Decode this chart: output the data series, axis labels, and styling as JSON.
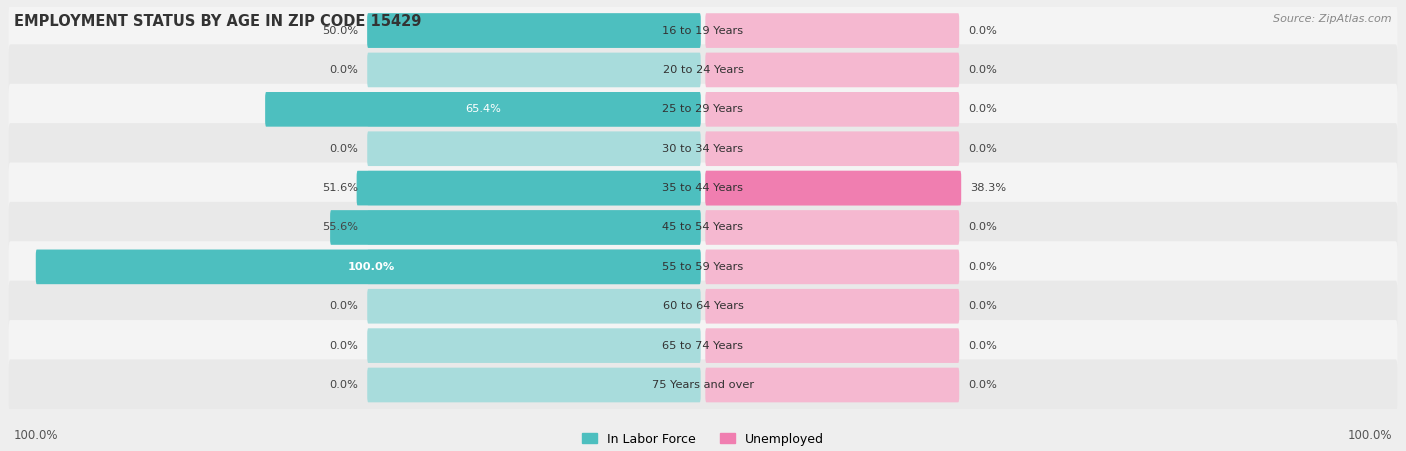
{
  "title": "EMPLOYMENT STATUS BY AGE IN ZIP CODE 15429",
  "source": "Source: ZipAtlas.com",
  "categories": [
    "16 to 19 Years",
    "20 to 24 Years",
    "25 to 29 Years",
    "30 to 34 Years",
    "35 to 44 Years",
    "45 to 54 Years",
    "55 to 59 Years",
    "60 to 64 Years",
    "65 to 74 Years",
    "75 Years and over"
  ],
  "labor_force": [
    50.0,
    0.0,
    65.4,
    0.0,
    51.6,
    55.6,
    100.0,
    0.0,
    0.0,
    0.0
  ],
  "unemployed": [
    0.0,
    0.0,
    0.0,
    0.0,
    38.3,
    0.0,
    0.0,
    0.0,
    0.0,
    0.0
  ],
  "labor_force_color": "#4DBFBF",
  "unemployed_color": "#F07EB0",
  "labor_force_light": "#A8DCDC",
  "unemployed_light": "#F5B8D0",
  "max_value": 100.0,
  "x_left_label": "100.0%",
  "x_right_label": "100.0%",
  "legend_labor": "In Labor Force",
  "legend_unemployed": "Unemployed"
}
